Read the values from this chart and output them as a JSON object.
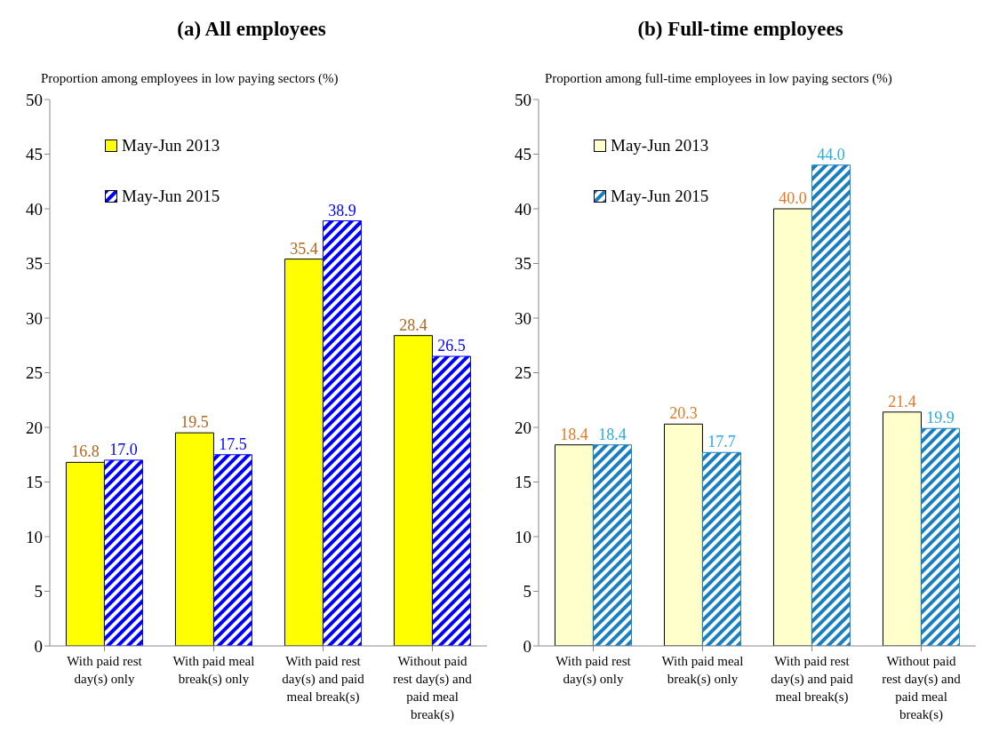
{
  "chart_data": [
    {
      "type": "bar",
      "title": "(a)  All employees",
      "ylabel": "Proportion among employees in low paying sectors (%)",
      "categories": [
        "With paid rest day(s) only",
        "With paid meal break(s) only",
        "With paid rest day(s) and paid meal break(s)",
        "Without paid rest day(s) and paid meal break(s)"
      ],
      "series": [
        {
          "name": "May-Jun 2013",
          "color": "#ffff00",
          "values": [
            16.8,
            19.5,
            35.4,
            28.4
          ],
          "value_labels": [
            "16.8",
            "19.5",
            "35.4",
            "28.4"
          ]
        },
        {
          "name": "May-Jun 2015",
          "color": "#0000ff",
          "values": [
            17.0,
            17.5,
            38.9,
            26.5
          ],
          "value_labels": [
            "17.0",
            "17.5",
            "38.9",
            "26.5"
          ]
        }
      ],
      "ylim": [
        0,
        50
      ],
      "yticks": [
        0,
        5,
        10,
        15,
        20,
        25,
        30,
        35,
        40,
        45,
        50
      ],
      "grid": false,
      "legend": "top left"
    },
    {
      "type": "bar",
      "title": "(b)  Full-time employees",
      "ylabel": "Proportion among full-time employees in low paying sectors (%)",
      "categories": [
        "With paid rest day(s) only",
        "With paid meal break(s) only",
        "With paid rest day(s) and paid meal break(s)",
        "Without paid rest day(s) and paid meal break(s)"
      ],
      "series": [
        {
          "name": "May-Jun 2013",
          "color": "#ffffcc",
          "values": [
            18.4,
            20.3,
            40.0,
            21.4
          ],
          "value_labels": [
            "18.4",
            "20.3",
            "40.0",
            "21.4"
          ]
        },
        {
          "name": "May-Jun 2015",
          "color": "#1a7fc1",
          "values": [
            18.4,
            17.7,
            44.0,
            19.9
          ],
          "value_labels": [
            "18.4",
            "17.7",
            "44.0",
            "19.9"
          ]
        }
      ],
      "ylim": [
        0,
        50
      ],
      "yticks": [
        0,
        5,
        10,
        15,
        20,
        25,
        30,
        35,
        40,
        45,
        50
      ],
      "grid": false,
      "legend": "top left"
    }
  ]
}
